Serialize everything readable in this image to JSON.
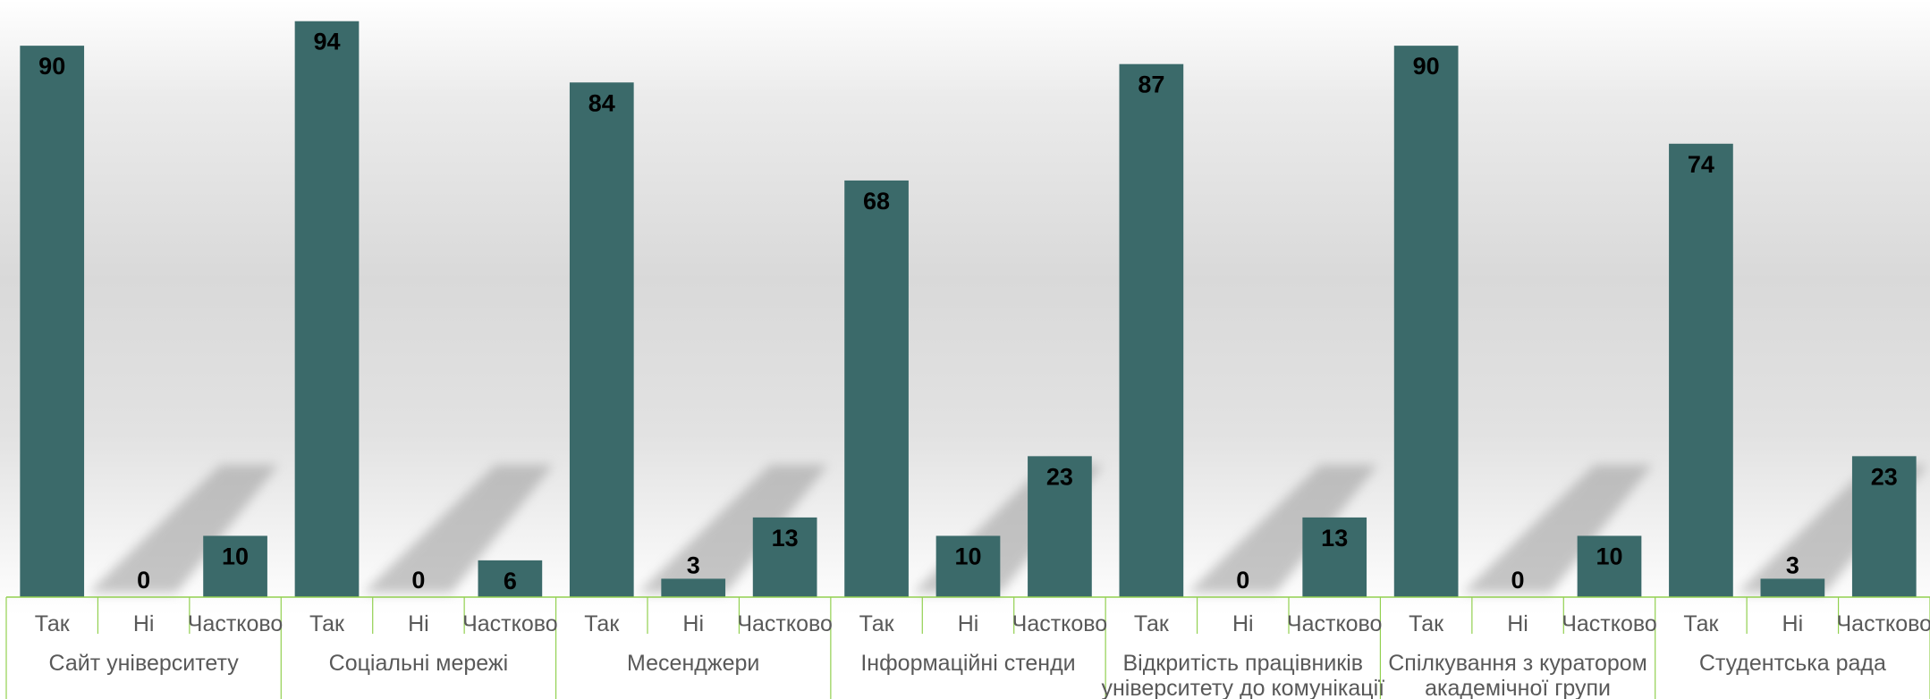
{
  "chart_data": {
    "type": "bar",
    "groups": [
      {
        "name": "Сайт університету",
        "lines": [
          "Сайт університету"
        ]
      },
      {
        "name": "Соціальні мережі",
        "lines": [
          "Соціальні мережі"
        ]
      },
      {
        "name": "Месенджери",
        "lines": [
          "Месенджери"
        ]
      },
      {
        "name": "Інформаційні стенди",
        "lines": [
          "Інформаційні стенди"
        ]
      },
      {
        "name": "Відкритість працівників університету до комунікації",
        "lines": [
          "Відкритість працівників",
          "університету до комунікації"
        ]
      },
      {
        "name": "Спілкування з куратором академічної групи",
        "lines": [
          "Спілкування з куратором",
          "академічної групи"
        ]
      },
      {
        "name": "Студентська рада",
        "lines": [
          "Студентська рада"
        ]
      }
    ],
    "categories": [
      "Так",
      "Ні",
      "Частково"
    ],
    "values": [
      [
        90,
        0,
        10
      ],
      [
        94,
        0,
        6
      ],
      [
        84,
        3,
        13
      ],
      [
        68,
        10,
        23
      ],
      [
        87,
        0,
        13
      ],
      [
        90,
        0,
        10
      ],
      [
        74,
        3,
        23
      ]
    ],
    "ylim": [
      0,
      96
    ],
    "bar_color": "#3b6a6a",
    "axis_color": "#92d050",
    "label_color": "#595959",
    "grid": false,
    "legend": "none"
  }
}
